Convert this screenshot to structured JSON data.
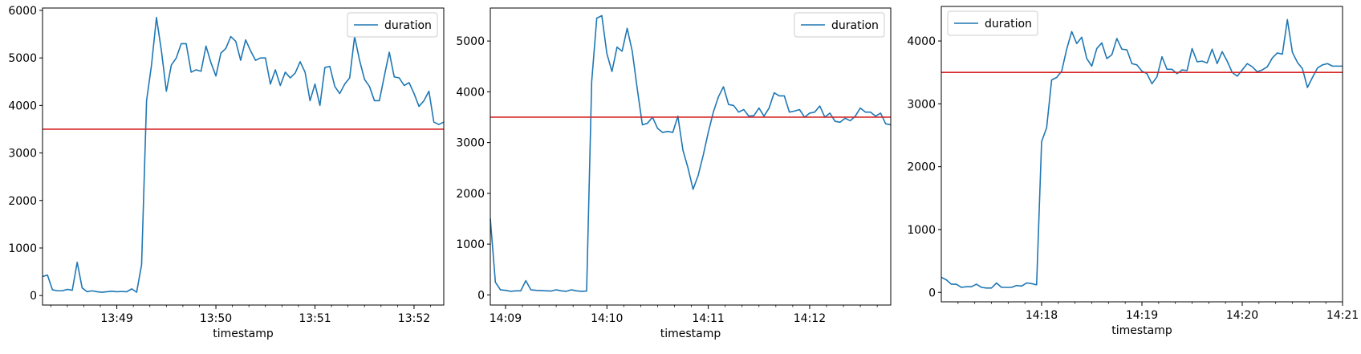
{
  "chart_data": [
    {
      "type": "line",
      "xlabel": "timestamp",
      "ylabel": "",
      "legend": [
        "duration"
      ],
      "legend_position": "top-right",
      "grid": false,
      "x_unit": "minutes",
      "xlim": [
        "13:48:15",
        "13:52:18"
      ],
      "ylim": [
        -200,
        6050
      ],
      "yticks": [
        0,
        1000,
        2000,
        3000,
        4000,
        5000,
        6000
      ],
      "xticks": [
        "13:49",
        "13:50",
        "13:51",
        "13:52"
      ],
      "threshold": 3500,
      "threshold_color": "#d62728",
      "series": [
        {
          "name": "duration",
          "color": "#1f77b4",
          "x": [
            "13:48:15",
            "13:48:18",
            "13:48:21",
            "13:48:24",
            "13:48:27",
            "13:48:30",
            "13:48:33",
            "13:48:36",
            "13:48:39",
            "13:48:42",
            "13:48:45",
            "13:48:48",
            "13:48:51",
            "13:48:54",
            "13:48:57",
            "13:49:00",
            "13:49:03",
            "13:49:06",
            "13:49:09",
            "13:49:12",
            "13:49:15",
            "13:49:18",
            "13:49:21",
            "13:49:24",
            "13:49:27",
            "13:49:30",
            "13:49:33",
            "13:49:36",
            "13:49:39",
            "13:49:42",
            "13:49:45",
            "13:49:48",
            "13:49:51",
            "13:49:54",
            "13:49:57",
            "13:50:00",
            "13:50:03",
            "13:50:06",
            "13:50:09",
            "13:50:12",
            "13:50:15",
            "13:50:18",
            "13:50:21",
            "13:50:24",
            "13:50:27",
            "13:50:30",
            "13:50:33",
            "13:50:36",
            "13:50:39",
            "13:50:42",
            "13:50:45",
            "13:50:48",
            "13:50:51",
            "13:50:54",
            "13:50:57",
            "13:51:00",
            "13:51:03",
            "13:51:06",
            "13:51:09",
            "13:51:12",
            "13:51:15",
            "13:51:18",
            "13:51:21",
            "13:51:24",
            "13:51:27",
            "13:51:30",
            "13:51:33",
            "13:51:36",
            "13:51:39",
            "13:51:42",
            "13:51:45",
            "13:51:48",
            "13:51:51",
            "13:51:54",
            "13:51:57",
            "13:52:00",
            "13:52:03",
            "13:52:06",
            "13:52:09",
            "13:52:12",
            "13:52:15",
            "13:52:18"
          ],
          "values": [
            400,
            430,
            120,
            100,
            100,
            130,
            110,
            700,
            160,
            80,
            100,
            80,
            70,
            80,
            90,
            80,
            85,
            80,
            140,
            70,
            650,
            4100,
            4850,
            5850,
            5150,
            4300,
            4850,
            5000,
            5300,
            5300,
            4700,
            4750,
            4720,
            5250,
            4900,
            4620,
            5100,
            5200,
            5450,
            5350,
            4950,
            5380,
            5150,
            4950,
            5000,
            5000,
            4450,
            4750,
            4420,
            4700,
            4580,
            4680,
            4920,
            4700,
            4100,
            4450,
            4000,
            4800,
            4820,
            4400,
            4250,
            4450,
            4580,
            5450,
            4950,
            4550,
            4400,
            4100,
            4100,
            4620,
            5120,
            4600,
            4580,
            4420,
            4480,
            4250,
            3980,
            4100,
            4300,
            3650,
            3600,
            3650
          ]
        }
      ]
    },
    {
      "type": "line",
      "xlabel": "timestamp",
      "ylabel": "",
      "legend": [
        "duration"
      ],
      "legend_position": "top-right",
      "grid": false,
      "x_unit": "minutes",
      "xlim": [
        "14:08:51",
        "14:12:48"
      ],
      "ylim": [
        -200,
        5650
      ],
      "yticks": [
        0,
        1000,
        2000,
        3000,
        4000,
        5000
      ],
      "xticks": [
        "14:09",
        "14:10",
        "14:11",
        "14:12"
      ],
      "threshold": 3500,
      "threshold_color": "#d62728",
      "series": [
        {
          "name": "duration",
          "color": "#1f77b4",
          "x": [
            "14:08:51",
            "14:08:54",
            "14:08:57",
            "14:09:00",
            "14:09:03",
            "14:09:06",
            "14:09:09",
            "14:09:12",
            "14:09:15",
            "14:09:18",
            "14:09:21",
            "14:09:24",
            "14:09:27",
            "14:09:30",
            "14:09:33",
            "14:09:36",
            "14:09:39",
            "14:09:42",
            "14:09:45",
            "14:09:48",
            "14:09:51",
            "14:09:54",
            "14:09:57",
            "14:10:00",
            "14:10:03",
            "14:10:06",
            "14:10:09",
            "14:10:12",
            "14:10:15",
            "14:10:18",
            "14:10:21",
            "14:10:24",
            "14:10:27",
            "14:10:30",
            "14:10:33",
            "14:10:36",
            "14:10:39",
            "14:10:42",
            "14:10:45",
            "14:10:48",
            "14:10:51",
            "14:10:54",
            "14:10:57",
            "14:11:00",
            "14:11:03",
            "14:11:06",
            "14:11:09",
            "14:11:12",
            "14:11:15",
            "14:11:18",
            "14:11:21",
            "14:11:24",
            "14:11:27",
            "14:11:30",
            "14:11:33",
            "14:11:36",
            "14:11:39",
            "14:11:42",
            "14:11:45",
            "14:11:48",
            "14:11:51",
            "14:11:54",
            "14:11:57",
            "14:12:00",
            "14:12:03",
            "14:12:06",
            "14:12:09",
            "14:12:12",
            "14:12:15",
            "14:12:18",
            "14:12:21",
            "14:12:24",
            "14:12:27",
            "14:12:30",
            "14:12:33",
            "14:12:36",
            "14:12:39",
            "14:12:42",
            "14:12:45",
            "14:12:48"
          ],
          "values": [
            1500,
            250,
            100,
            90,
            70,
            80,
            80,
            280,
            100,
            90,
            85,
            80,
            75,
            100,
            80,
            70,
            100,
            80,
            70,
            75,
            4200,
            5450,
            5500,
            4750,
            4400,
            4880,
            4800,
            5250,
            4800,
            4050,
            3350,
            3380,
            3500,
            3280,
            3200,
            3220,
            3200,
            3520,
            2850,
            2500,
            2080,
            2350,
            2750,
            3200,
            3600,
            3900,
            4100,
            3750,
            3730,
            3600,
            3650,
            3520,
            3530,
            3680,
            3520,
            3680,
            3980,
            3920,
            3920,
            3600,
            3620,
            3650,
            3500,
            3580,
            3600,
            3720,
            3500,
            3580,
            3420,
            3400,
            3480,
            3430,
            3520,
            3680,
            3600,
            3600,
            3520,
            3580,
            3370,
            3350
          ]
        }
      ]
    },
    {
      "type": "line",
      "xlabel": "timestamp",
      "ylabel": "",
      "legend": [
        "duration"
      ],
      "legend_position": "top-left",
      "grid": false,
      "x_unit": "minutes",
      "xlim": [
        "14:17:00",
        "14:21:00"
      ],
      "ylim": [
        -150,
        4550
      ],
      "yticks": [
        0,
        1000,
        2000,
        3000,
        4000
      ],
      "xticks": [
        "14:18",
        "14:19",
        "14:20",
        "14:21"
      ],
      "threshold": 3500,
      "threshold_color": "#d62728",
      "series": [
        {
          "name": "duration",
          "color": "#1f77b4",
          "x": [
            "14:17:00",
            "14:17:03",
            "14:17:06",
            "14:17:09",
            "14:17:12",
            "14:17:15",
            "14:17:18",
            "14:17:21",
            "14:17:24",
            "14:17:27",
            "14:17:30",
            "14:17:33",
            "14:17:36",
            "14:17:39",
            "14:17:42",
            "14:17:45",
            "14:17:48",
            "14:17:51",
            "14:17:54",
            "14:17:57",
            "14:18:00",
            "14:18:03",
            "14:18:06",
            "14:18:09",
            "14:18:12",
            "14:18:15",
            "14:18:18",
            "14:18:21",
            "14:18:24",
            "14:18:27",
            "14:18:30",
            "14:18:33",
            "14:18:36",
            "14:18:39",
            "14:18:42",
            "14:18:45",
            "14:18:48",
            "14:18:51",
            "14:18:54",
            "14:18:57",
            "14:19:00",
            "14:19:03",
            "14:19:06",
            "14:19:09",
            "14:19:12",
            "14:19:15",
            "14:19:18",
            "14:19:21",
            "14:19:24",
            "14:19:27",
            "14:19:30",
            "14:19:33",
            "14:19:36",
            "14:19:39",
            "14:19:42",
            "14:19:45",
            "14:19:48",
            "14:19:51",
            "14:19:54",
            "14:19:57",
            "14:20:00",
            "14:20:03",
            "14:20:06",
            "14:20:09",
            "14:20:12",
            "14:20:15",
            "14:20:18",
            "14:20:21",
            "14:20:24",
            "14:20:27",
            "14:20:30",
            "14:20:33",
            "14:20:36",
            "14:20:39",
            "14:20:42",
            "14:20:45",
            "14:20:48",
            "14:20:51",
            "14:20:54",
            "14:20:57",
            "14:21:00"
          ],
          "values": [
            240,
            200,
            130,
            130,
            80,
            90,
            90,
            130,
            80,
            70,
            70,
            150,
            80,
            80,
            80,
            110,
            100,
            150,
            140,
            120,
            2400,
            2620,
            3380,
            3420,
            3520,
            3870,
            4150,
            3960,
            4060,
            3720,
            3600,
            3880,
            3970,
            3720,
            3780,
            4040,
            3870,
            3860,
            3640,
            3620,
            3520,
            3480,
            3320,
            3430,
            3750,
            3550,
            3550,
            3480,
            3540,
            3530,
            3880,
            3670,
            3680,
            3650,
            3870,
            3640,
            3830,
            3680,
            3500,
            3440,
            3540,
            3640,
            3590,
            3510,
            3540,
            3590,
            3730,
            3810,
            3790,
            4340,
            3820,
            3660,
            3560,
            3260,
            3420,
            3570,
            3620,
            3640,
            3600,
            3600,
            3600
          ]
        }
      ]
    }
  ]
}
